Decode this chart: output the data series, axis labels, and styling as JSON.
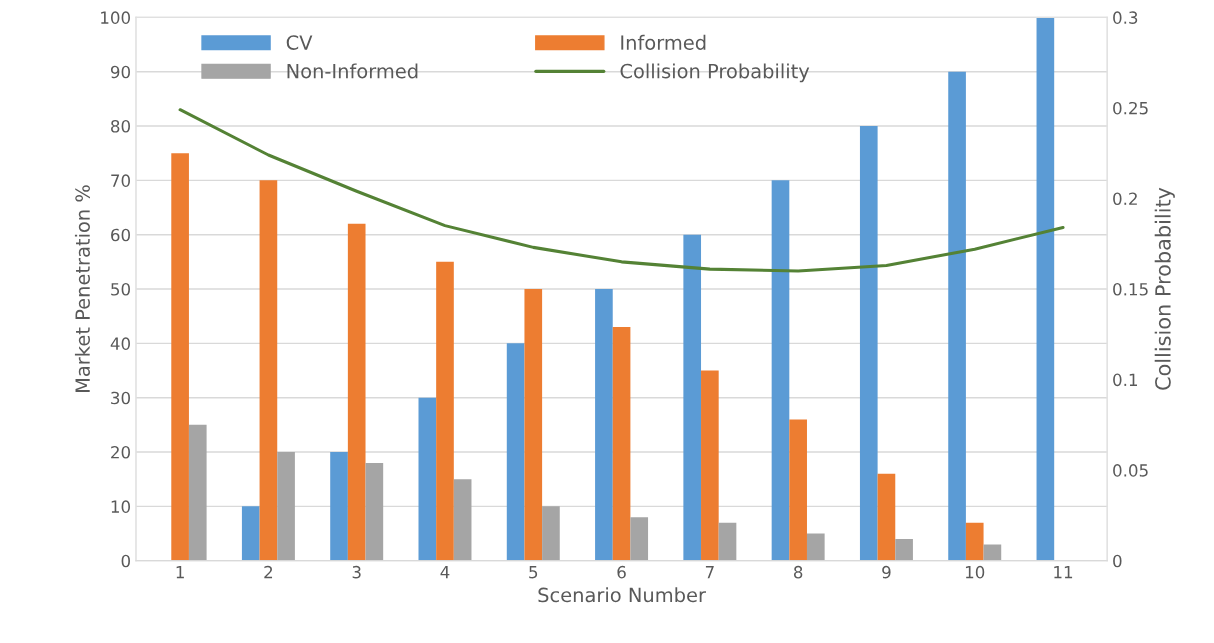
{
  "chart_data": {
    "type": "bar",
    "xlabel": "Scenario Number",
    "ylabel": "Market Penetration %",
    "y2label": "Collision Probability",
    "categories": [
      "1",
      "2",
      "3",
      "4",
      "5",
      "6",
      "7",
      "8",
      "9",
      "10",
      "11"
    ],
    "series": [
      {
        "name": "CV",
        "color": "#5b9bd5",
        "values": [
          0,
          10,
          20,
          30,
          40,
          50,
          60,
          70,
          80,
          90,
          100
        ]
      },
      {
        "name": "Informed",
        "color": "#ed7d31",
        "values": [
          75,
          70,
          62,
          55,
          50,
          43,
          35,
          26,
          16,
          7,
          0
        ]
      },
      {
        "name": "Non-Informed",
        "color": "#a5a5a5",
        "values": [
          25,
          20,
          18,
          15,
          10,
          8,
          7,
          5,
          4,
          3,
          0
        ]
      },
      {
        "name": "Collision Probability",
        "type": "line",
        "axis": "y2",
        "color": "#548235",
        "values": [
          0.249,
          0.224,
          0.204,
          0.185,
          0.173,
          0.165,
          0.161,
          0.16,
          0.163,
          0.172,
          0.184
        ]
      }
    ],
    "ylim": [
      0,
      100
    ],
    "yticks": [
      0,
      10,
      20,
      30,
      40,
      50,
      60,
      70,
      80,
      90,
      100
    ],
    "y2lim": [
      0,
      0.3
    ],
    "y2ticks": [
      0,
      0.05,
      0.1,
      0.15,
      0.2,
      0.25,
      0.3
    ],
    "grid": "y",
    "legend": "top left"
  }
}
